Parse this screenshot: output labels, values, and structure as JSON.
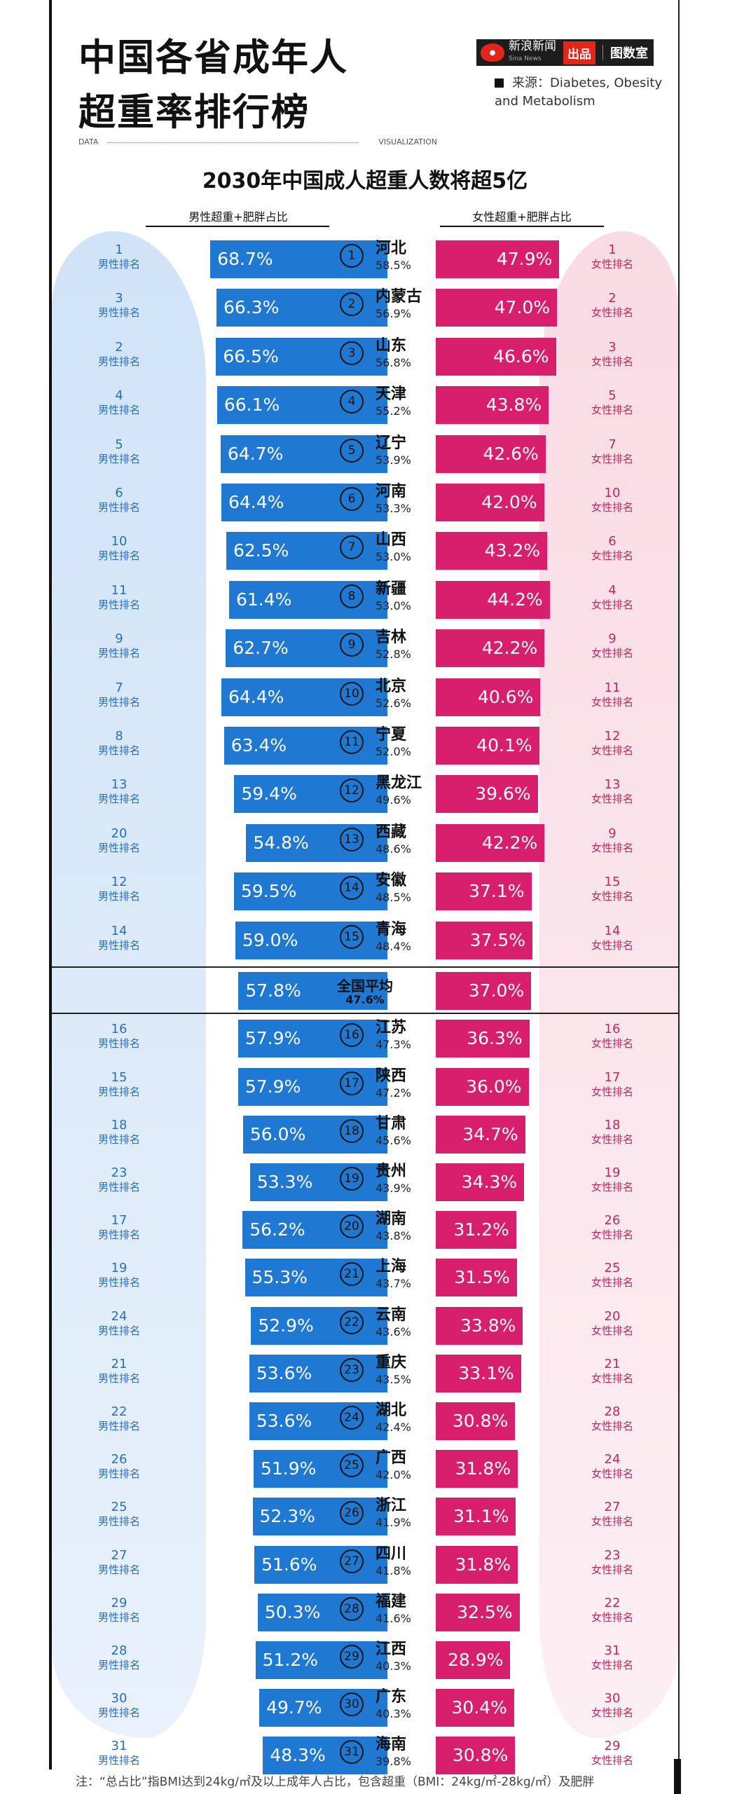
{
  "header": {
    "title_line1": "中国各省成年人",
    "title_line2": "超重率排行榜",
    "logo_icon": "sina",
    "logo_name": "新浪新闻",
    "logo_name_en": "Sina News",
    "logo_badge": "出品",
    "logo_brand": "图数室",
    "source_line1": "来源：Diabetes, Obesity",
    "source_line2": "and Metabolism",
    "data_label": "DATA",
    "visualization_label": "VISUALIZATION"
  },
  "chart_data": {
    "type": "bar",
    "title": "2030年中国成人超重人数将超5亿",
    "male_header": "男性超重+肥胖占比",
    "female_header": "女性超重+肥胖占比",
    "male_rank_label": "男性排名",
    "female_rank_label": "女性排名",
    "national_average": {
      "label": "全国平均",
      "total": "47.6%",
      "male": 57.8,
      "female": 37.0
    },
    "rows": [
      {
        "order": "1",
        "province": "河北",
        "total": "58.5%",
        "male": 68.7,
        "female": 47.9,
        "male_rank": "1",
        "female_rank": "1"
      },
      {
        "order": "2",
        "province": "内蒙古",
        "total": "56.9%",
        "male": 66.3,
        "female": 47.0,
        "male_rank": "3",
        "female_rank": "2"
      },
      {
        "order": "3",
        "province": "山东",
        "total": "56.8%",
        "male": 66.5,
        "female": 46.6,
        "male_rank": "2",
        "female_rank": "3"
      },
      {
        "order": "4",
        "province": "天津",
        "total": "55.2%",
        "male": 66.1,
        "female": 43.8,
        "male_rank": "4",
        "female_rank": "5"
      },
      {
        "order": "5",
        "province": "辽宁",
        "total": "53.9%",
        "male": 64.7,
        "female": 42.6,
        "male_rank": "5",
        "female_rank": "7"
      },
      {
        "order": "6",
        "province": "河南",
        "total": "53.3%",
        "male": 64.4,
        "female": 42.0,
        "male_rank": "6",
        "female_rank": "10"
      },
      {
        "order": "7",
        "province": "山西",
        "total": "53.0%",
        "male": 62.5,
        "female": 43.2,
        "male_rank": "10",
        "female_rank": "6"
      },
      {
        "order": "8",
        "province": "新疆",
        "total": "53.0%",
        "male": 61.4,
        "female": 44.2,
        "male_rank": "11",
        "female_rank": "4"
      },
      {
        "order": "9",
        "province": "吉林",
        "total": "52.8%",
        "male": 62.7,
        "female": 42.2,
        "male_rank": "9",
        "female_rank": "9"
      },
      {
        "order": "10",
        "province": "北京",
        "total": "52.6%",
        "male": 64.4,
        "female": 40.6,
        "male_rank": "7",
        "female_rank": "11"
      },
      {
        "order": "11",
        "province": "宁夏",
        "total": "52.0%",
        "male": 63.4,
        "female": 40.1,
        "male_rank": "8",
        "female_rank": "12"
      },
      {
        "order": "12",
        "province": "黑龙江",
        "total": "49.6%",
        "male": 59.4,
        "female": 39.6,
        "male_rank": "13",
        "female_rank": "13"
      },
      {
        "order": "13",
        "province": "西藏",
        "total": "48.6%",
        "male": 54.8,
        "female": 42.2,
        "male_rank": "20",
        "female_rank": "9"
      },
      {
        "order": "14",
        "province": "安徽",
        "total": "48.5%",
        "male": 59.5,
        "female": 37.1,
        "male_rank": "12",
        "female_rank": "15"
      },
      {
        "order": "15",
        "province": "青海",
        "total": "48.4%",
        "male": 59.0,
        "female": 37.5,
        "male_rank": "14",
        "female_rank": "14"
      },
      {
        "order": "16",
        "province": "江苏",
        "total": "47.3%",
        "male": 57.9,
        "female": 36.3,
        "male_rank": "16",
        "female_rank": "16"
      },
      {
        "order": "17",
        "province": "陕西",
        "total": "47.2%",
        "male": 57.9,
        "female": 36.0,
        "male_rank": "15",
        "female_rank": "17"
      },
      {
        "order": "18",
        "province": "甘肃",
        "total": "45.6%",
        "male": 56.0,
        "female": 34.7,
        "male_rank": "18",
        "female_rank": "18"
      },
      {
        "order": "19",
        "province": "贵州",
        "total": "43.9%",
        "male": 53.3,
        "female": 34.3,
        "male_rank": "23",
        "female_rank": "19"
      },
      {
        "order": "20",
        "province": "湖南",
        "total": "43.8%",
        "male": 56.2,
        "female": 31.2,
        "male_rank": "17",
        "female_rank": "26"
      },
      {
        "order": "21",
        "province": "上海",
        "total": "43.7%",
        "male": 55.3,
        "female": 31.5,
        "male_rank": "19",
        "female_rank": "25"
      },
      {
        "order": "22",
        "province": "云南",
        "total": "43.6%",
        "male": 52.9,
        "female": 33.8,
        "male_rank": "24",
        "female_rank": "20"
      },
      {
        "order": "23",
        "province": "重庆",
        "total": "43.5%",
        "male": 53.6,
        "female": 33.1,
        "male_rank": "21",
        "female_rank": "21"
      },
      {
        "order": "24",
        "province": "湖北",
        "total": "42.4%",
        "male": 53.6,
        "female": 30.8,
        "male_rank": "22",
        "female_rank": "28"
      },
      {
        "order": "25",
        "province": "广西",
        "total": "42.0%",
        "male": 51.9,
        "female": 31.8,
        "male_rank": "26",
        "female_rank": "24"
      },
      {
        "order": "26",
        "province": "浙江",
        "total": "41.9%",
        "male": 52.3,
        "female": 31.1,
        "male_rank": "25",
        "female_rank": "27"
      },
      {
        "order": "27",
        "province": "四川",
        "total": "41.8%",
        "male": 51.6,
        "female": 31.8,
        "male_rank": "27",
        "female_rank": "23"
      },
      {
        "order": "28",
        "province": "福建",
        "total": "41.6%",
        "male": 50.3,
        "female": 32.5,
        "male_rank": "29",
        "female_rank": "22"
      },
      {
        "order": "29",
        "province": "江西",
        "total": "40.3%",
        "male": 51.2,
        "female": 28.9,
        "male_rank": "28",
        "female_rank": "31"
      },
      {
        "order": "30",
        "province": "广东",
        "total": "40.3%",
        "male": 49.7,
        "female": 30.4,
        "male_rank": "30",
        "female_rank": "30"
      },
      {
        "order": "31",
        "province": "海南",
        "total": "39.8%",
        "male": 48.3,
        "female": 30.8,
        "male_rank": "31",
        "female_rank": "29"
      }
    ]
  },
  "colors": {
    "male_bar": "#1f78d1",
    "female_bar": "#d81f6e"
  },
  "footnote": "注：“总占比”指BMI达到24kg/㎡及以上成年人占比，包含超重（BMI：24kg/㎡-28kg/㎡）及肥胖"
}
